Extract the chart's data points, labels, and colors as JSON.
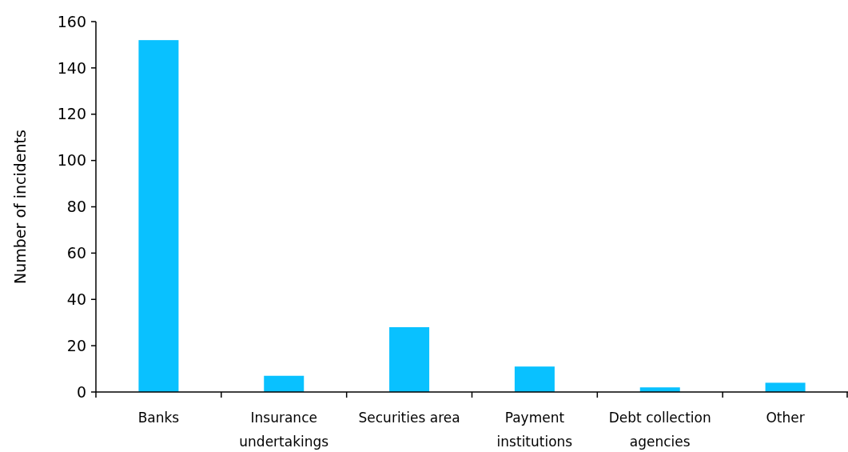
{
  "chart_data": {
    "type": "bar",
    "ylabel": "Number of incidents",
    "categories": [
      "Banks",
      "Insurance undertakings",
      "Securities area",
      "Payment institutions",
      "Debt collection agencies",
      "Other"
    ],
    "values": [
      152,
      7,
      28,
      11,
      2,
      4
    ],
    "color": "#09c1ff",
    "ylim": [
      0,
      160
    ],
    "yticks": [
      0,
      20,
      40,
      60,
      80,
      100,
      120,
      140,
      160
    ],
    "grid": false
  }
}
